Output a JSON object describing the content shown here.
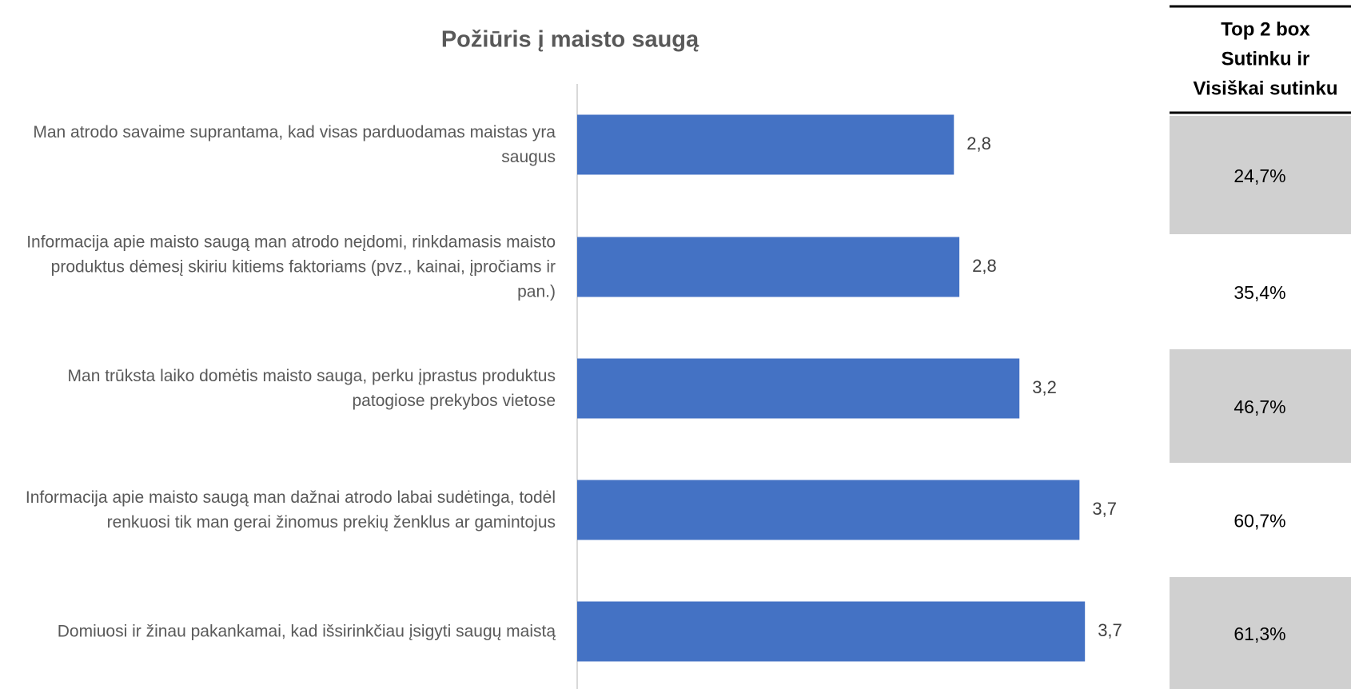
{
  "chart_data": {
    "type": "bar",
    "orientation": "horizontal",
    "title": "Požiūris į maisto saugą",
    "categories": [
      "Man atrodo savaime suprantama, kad visas parduodamas maistas yra saugus",
      "Informacija apie maisto saugą man atrodo neįdomi, rinkdamasis maisto produktus dėmesį skiriu kitiems faktoriams (pvz., kainai, įpročiams ir pan.)",
      "Man trūksta laiko domėtis maisto sauga, perku įprastus produktus patogiose prekybos vietose",
      "Informacija apie maisto saugą man dažnai atrodo labai sudėtinga, todėl renkuosi tik man gerai žinomus prekių ženklus ar gamintojus",
      "Domiuosi ir žinau pakankamai, kad išsirinkčiau įsigyti saugų maistą"
    ],
    "values": [
      2.76,
      2.8,
      3.24,
      3.68,
      3.72
    ],
    "value_labels": [
      "2,8",
      "2,8",
      "3,2",
      "3,7",
      "3,7"
    ],
    "color": "#4472c4",
    "xlim": [
      0,
      4
    ],
    "table": {
      "header": [
        "Top 2 box",
        "Sutinku ir",
        "Visiškai sutinku"
      ],
      "cells": [
        "24,7%",
        "35,4%",
        "46,7%",
        "60,7%",
        "61,3%"
      ],
      "shaded_color": "#d0d0d0"
    }
  }
}
